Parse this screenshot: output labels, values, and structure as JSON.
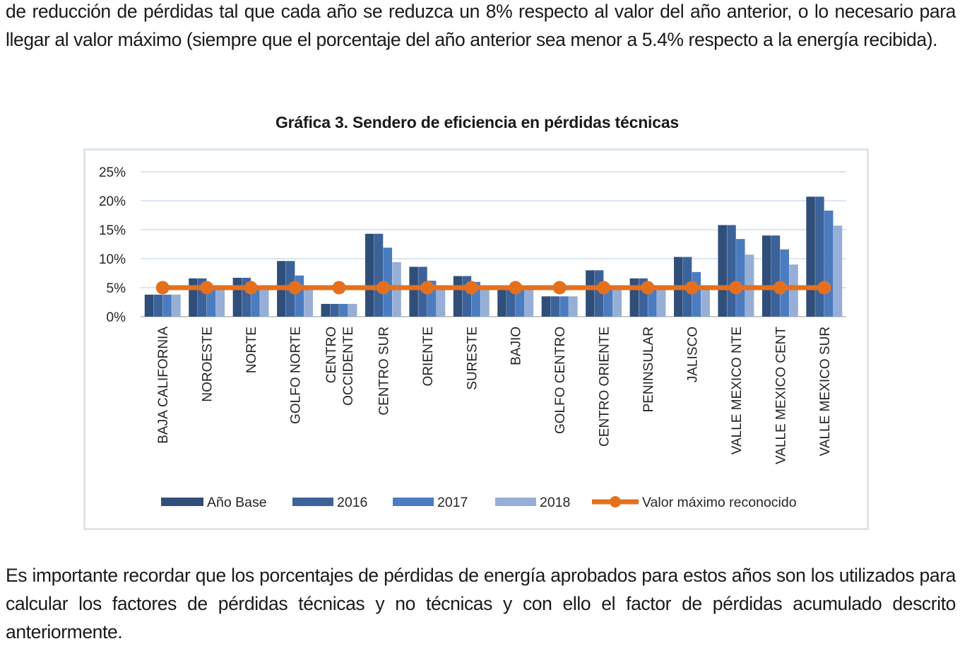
{
  "paragraph_top": "de reducción de pérdidas tal que cada año se reduzca un 8% respecto al valor del año anterior, o lo necesario para llegar al valor máximo (siempre que el porcentaje del año anterior sea menor a 5.4% respecto a la energía recibida).",
  "paragraph_bottom": "Es importante recordar que los porcentajes de pérdidas de energía aprobados para estos años son los utilizados para calcular los factores de pérdidas técnicas y no técnicas y con ello el factor de pérdidas acumulado descrito anteriormente.",
  "chart_data": {
    "type": "bar",
    "title": "Gráfica 3. Sendero de eficiencia en pérdidas técnicas",
    "xlabel": "",
    "ylabel": "",
    "ylim": [
      0,
      25
    ],
    "yticks": [
      "0%",
      "5%",
      "10%",
      "15%",
      "20%",
      "25%"
    ],
    "grid": true,
    "legend_position": "bottom",
    "categories": [
      [
        "BAJA CALIFORNIA"
      ],
      [
        "NOROESTE"
      ],
      [
        "NORTE"
      ],
      [
        "GOLFO NORTE"
      ],
      [
        "CENTRO",
        "OCCIDENTE"
      ],
      [
        "CENTRO SUR"
      ],
      [
        "ORIENTE"
      ],
      [
        "SURESTE"
      ],
      [
        "BAJIO"
      ],
      [
        "GOLFO CENTRO"
      ],
      [
        "CENTRO ORIENTE"
      ],
      [
        "PENINSULAR"
      ],
      [
        "JALISCO"
      ],
      [
        "VALLE MEXICO NTE"
      ],
      [
        "VALLE MEXICO CENT"
      ],
      [
        "VALLE MEXICO SUR"
      ]
    ],
    "series": [
      {
        "name": "Año Base",
        "kind": "bar",
        "color": "#2f4e7a",
        "values": [
          3.8,
          6.6,
          6.7,
          9.6,
          2.2,
          14.3,
          8.6,
          7.0,
          5.0,
          3.5,
          8.0,
          6.6,
          10.3,
          15.8,
          14.0,
          20.7
        ]
      },
      {
        "name": "2016",
        "kind": "bar",
        "color": "#3c629a",
        "values": [
          3.8,
          6.6,
          6.7,
          9.6,
          2.2,
          14.3,
          8.6,
          7.0,
          5.0,
          3.5,
          8.0,
          6.6,
          10.3,
          15.8,
          14.0,
          20.7
        ]
      },
      {
        "name": "2017",
        "kind": "bar",
        "color": "#4b7cc0",
        "values": [
          3.8,
          5.4,
          5.4,
          7.1,
          2.2,
          11.9,
          6.2,
          6.0,
          5.0,
          3.5,
          5.4,
          5.4,
          7.7,
          13.4,
          11.6,
          18.3
        ]
      },
      {
        "name": "2018",
        "kind": "bar",
        "color": "#97aed6",
        "values": [
          3.8,
          5.0,
          5.0,
          5.0,
          2.2,
          9.4,
          5.0,
          5.0,
          5.0,
          3.5,
          5.0,
          5.0,
          5.0,
          10.7,
          9.0,
          15.7
        ]
      },
      {
        "name": "Valor máximo reconocido",
        "kind": "line",
        "color": "#e4701e",
        "values": [
          5.0,
          5.0,
          5.0,
          5.0,
          5.0,
          5.0,
          5.0,
          5.0,
          5.0,
          5.0,
          5.0,
          5.0,
          5.0,
          5.0,
          5.0,
          5.0
        ]
      }
    ]
  }
}
